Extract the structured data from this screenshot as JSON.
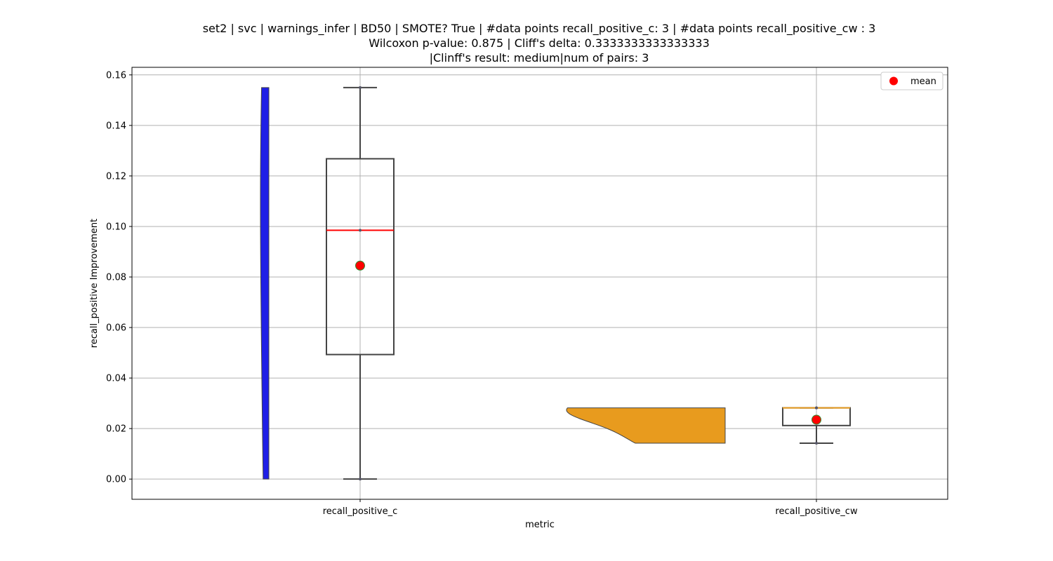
{
  "chart_data": {
    "type": "box",
    "title_lines": [
      "set2 | svc | warnings_infer | BD50 | SMOTE? True | #data points recall_positive_c: 3 | #data points recall_positive_cw : 3",
      "Wilcoxon p-value: 0.875 | Cliff's delta: 0.3333333333333333",
      "|Clinff's result: medium|num of pairs: 3"
    ],
    "xlabel": "metric",
    "ylabel": "recall_positive Improvement",
    "ylim": [
      -0.008,
      0.163
    ],
    "yticks": [
      0.0,
      0.02,
      0.04,
      0.06,
      0.08,
      0.1,
      0.12,
      0.14,
      0.16
    ],
    "ytick_labels": [
      "0.00",
      "0.02",
      "0.04",
      "0.06",
      "0.08",
      "0.10",
      "0.12",
      "0.14",
      "0.16"
    ],
    "grid": true,
    "legend": {
      "position": "upper-right",
      "label": "mean",
      "marker_color": "#ff0000"
    },
    "categories": [
      "recall_positive_c",
      "recall_positive_cw"
    ],
    "series": [
      {
        "category": "recall_positive_c",
        "violin_color": "#1f1fe6",
        "violin_side": "left",
        "points": [
          0.0,
          0.0985,
          0.155
        ],
        "box": {
          "whisker_low": 0.0,
          "q1": 0.0493,
          "median": 0.0985,
          "q3": 0.1268,
          "whisker_high": 0.155
        },
        "mean": 0.0845,
        "median_color": "#ff0000"
      },
      {
        "category": "recall_positive_cw",
        "violin_color": "#e89b1e",
        "violin_side": "left",
        "points": [
          0.0142,
          0.0282,
          0.0282
        ],
        "box": {
          "whisker_low": 0.0142,
          "q1": 0.0212,
          "median": 0.0282,
          "q3": 0.0282,
          "whisker_high": 0.0282
        },
        "mean": 0.0235,
        "median_color": "#e89b1e"
      }
    ]
  }
}
